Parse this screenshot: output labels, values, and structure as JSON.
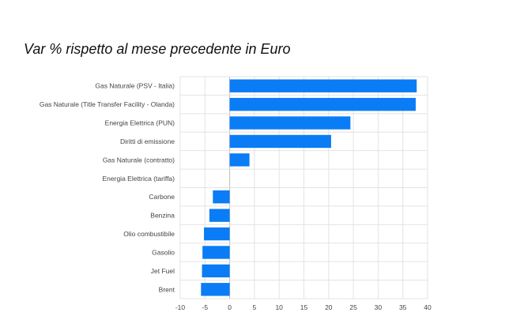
{
  "chart_data": {
    "type": "bar",
    "orientation": "horizontal",
    "title": "Var % rispetto al mese precedente in Euro",
    "xlabel": "",
    "ylabel": "",
    "categories": [
      "Gas Naturale (PSV - Italia)",
      "Gas Naturale (Title Transfer Facility - Olanda)",
      "Energia Elettrica  (PUN)",
      "Diritti di emissione",
      "Gas Naturale (contratto)",
      "Energia Elettrica (tariffa)",
      "Carbone",
      "Benzina",
      "Olio combustibile",
      "Gasolio",
      "Jet Fuel",
      "Brent"
    ],
    "values": [
      37.8,
      37.6,
      24.4,
      20.5,
      4.0,
      0,
      -3.4,
      -4.1,
      -5.2,
      -5.5,
      -5.6,
      -5.8
    ],
    "xlim": [
      -10,
      40
    ],
    "xticks": [
      -10,
      -5,
      0,
      5,
      10,
      15,
      20,
      25,
      30,
      35,
      40
    ],
    "grid": true,
    "legend": "none",
    "bar_color": "#0a7cf5",
    "grid_color": "#e3e3e3",
    "zero_line_color": "#bdbdbd"
  }
}
